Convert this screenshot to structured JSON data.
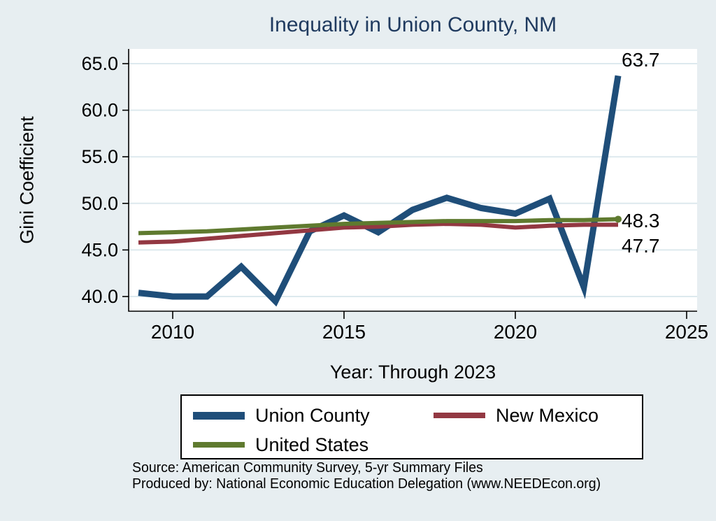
{
  "colors": {
    "background": "#e7eef1",
    "plot_background": "#ffffff",
    "title": "#1f3a5f",
    "axis": "#000000",
    "gridline": "#dde9ee",
    "union_county": "#1f4e79",
    "new_mexico": "#933842",
    "united_states": "#5f7a2f"
  },
  "chart_data": {
    "type": "line",
    "title": "Inequality in Union County, NM",
    "xlabel": "Year: Through 2023",
    "ylabel": "Gini Coefficient",
    "x": [
      2009,
      2010,
      2011,
      2012,
      2013,
      2014,
      2015,
      2016,
      2017,
      2018,
      2019,
      2020,
      2021,
      2022,
      2023
    ],
    "series": [
      {
        "name": "Union County",
        "color": "#1f4e79",
        "line_width": 9,
        "values": [
          40.4,
          40.0,
          40.0,
          43.2,
          39.5,
          47.0,
          48.7,
          46.9,
          49.3,
          50.6,
          49.5,
          48.9,
          50.5,
          41.0,
          63.7
        ],
        "end_label": "63.7",
        "end_marker": false
      },
      {
        "name": "New Mexico",
        "color": "#933842",
        "line_width": 6,
        "values": [
          45.8,
          45.9,
          46.2,
          46.5,
          46.8,
          47.1,
          47.4,
          47.5,
          47.7,
          47.8,
          47.7,
          47.4,
          47.6,
          47.7,
          47.7
        ],
        "end_label": "47.7",
        "end_marker": false
      },
      {
        "name": "United States",
        "color": "#5f7a2f",
        "line_width": 6,
        "values": [
          46.8,
          46.9,
          47.0,
          47.2,
          47.4,
          47.6,
          47.8,
          47.9,
          48.0,
          48.1,
          48.1,
          48.1,
          48.2,
          48.2,
          48.3
        ],
        "end_label": "48.3",
        "end_marker": true
      }
    ],
    "y_ticks": [
      40.0,
      45.0,
      50.0,
      55.0,
      60.0,
      65.0
    ],
    "y_tick_labels": [
      "40.0",
      "45.0",
      "50.0",
      "55.0",
      "60.0",
      "65.0"
    ],
    "x_ticks": [
      2010,
      2015,
      2020,
      2025
    ],
    "x_tick_labels": [
      "2010",
      "2015",
      "2020",
      "2025"
    ],
    "ylim": [
      38.6,
      66.6
    ],
    "xlim": [
      2008.7,
      2025.3
    ],
    "grid": "horizontal",
    "legend_position": "bottom"
  },
  "footer": {
    "source": "Source: American Community Survey, 5-yr Summary Files",
    "produced_by": "Produced by: National Economic Education Delegation (www.NEEDEcon.org)"
  }
}
